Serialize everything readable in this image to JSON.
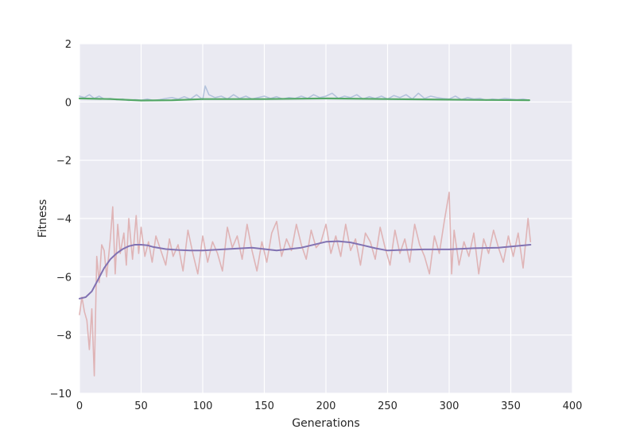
{
  "chart_data": {
    "type": "line",
    "title": "",
    "xlabel": "Generations",
    "ylabel": "Fitness",
    "xlim": [
      0,
      400
    ],
    "ylim": [
      -10,
      2
    ],
    "xticks": [
      0,
      50,
      100,
      150,
      200,
      250,
      300,
      350,
      400
    ],
    "yticks": [
      -10,
      -8,
      -6,
      -4,
      -2,
      0,
      2
    ],
    "ytick_labels": [
      "−10",
      "−8",
      "−6",
      "−4",
      "−2",
      "0",
      "2"
    ],
    "grid": true,
    "background": "#eaeaf2",
    "colors": {
      "raw_top": "#b4c3dc",
      "smooth_top": "#55a868",
      "raw_bottom": "#dfb4b6",
      "smooth_bottom": "#8172b2"
    },
    "series": [
      {
        "role": "raw_top",
        "x": [
          0,
          4,
          8,
          12,
          16,
          20,
          25,
          30,
          35,
          40,
          45,
          50,
          55,
          60,
          65,
          70,
          75,
          80,
          85,
          90,
          95,
          100,
          102,
          105,
          110,
          115,
          120,
          125,
          130,
          135,
          140,
          145,
          150,
          155,
          160,
          165,
          170,
          175,
          180,
          185,
          190,
          195,
          200,
          205,
          210,
          215,
          220,
          225,
          230,
          235,
          240,
          245,
          250,
          255,
          260,
          265,
          270,
          275,
          280,
          285,
          290,
          295,
          300,
          305,
          310,
          315,
          320,
          325,
          330,
          335,
          340,
          345,
          350,
          355,
          360,
          365
        ],
        "y": [
          0.2,
          0.15,
          0.25,
          0.12,
          0.2,
          0.1,
          0.12,
          0.08,
          0.1,
          0.05,
          0.08,
          0.06,
          0.1,
          0.05,
          0.08,
          0.12,
          0.15,
          0.1,
          0.18,
          0.1,
          0.25,
          0.08,
          0.55,
          0.25,
          0.15,
          0.2,
          0.1,
          0.25,
          0.12,
          0.2,
          0.1,
          0.15,
          0.2,
          0.12,
          0.18,
          0.1,
          0.15,
          0.12,
          0.2,
          0.12,
          0.25,
          0.15,
          0.2,
          0.3,
          0.12,
          0.2,
          0.15,
          0.25,
          0.1,
          0.18,
          0.12,
          0.2,
          0.1,
          0.22,
          0.15,
          0.25,
          0.1,
          0.3,
          0.12,
          0.2,
          0.15,
          0.12,
          0.1,
          0.2,
          0.08,
          0.15,
          0.1,
          0.12,
          0.06,
          0.1,
          0.08,
          0.12,
          0.1,
          0.08,
          0.1,
          0.06
        ]
      },
      {
        "role": "smooth_top",
        "x": [
          0,
          25,
          50,
          75,
          100,
          150,
          200,
          250,
          300,
          330,
          365
        ],
        "y": [
          0.12,
          0.1,
          0.05,
          0.06,
          0.1,
          0.1,
          0.12,
          0.1,
          0.08,
          0.07,
          0.06
        ]
      },
      {
        "role": "raw_bottom",
        "x": [
          0,
          2,
          4,
          6,
          8,
          10,
          12,
          14,
          16,
          18,
          20,
          22,
          25,
          27,
          29,
          31,
          33,
          36,
          38,
          40,
          43,
          46,
          48,
          50,
          53,
          56,
          59,
          62,
          66,
          70,
          73,
          76,
          80,
          84,
          88,
          92,
          96,
          100,
          104,
          108,
          112,
          116,
          120,
          124,
          128,
          132,
          136,
          140,
          144,
          148,
          152,
          156,
          160,
          164,
          168,
          172,
          176,
          180,
          184,
          188,
          192,
          196,
          200,
          204,
          208,
          212,
          216,
          220,
          224,
          228,
          232,
          236,
          240,
          244,
          248,
          252,
          256,
          260,
          264,
          268,
          272,
          276,
          280,
          284,
          288,
          292,
          296,
          300,
          302,
          304,
          308,
          312,
          316,
          320,
          324,
          328,
          332,
          336,
          340,
          344,
          348,
          352,
          356,
          360,
          364,
          366
        ],
        "y": [
          -7.3,
          -6.7,
          -7.2,
          -7.5,
          -8.5,
          -7.1,
          -9.4,
          -5.3,
          -6.2,
          -4.9,
          -5.1,
          -6.0,
          -4.7,
          -3.6,
          -5.9,
          -4.2,
          -5.2,
          -4.5,
          -5.6,
          -4.0,
          -5.4,
          -3.9,
          -5.2,
          -4.3,
          -5.3,
          -4.8,
          -5.5,
          -4.6,
          -5.1,
          -5.6,
          -4.7,
          -5.3,
          -4.9,
          -5.8,
          -4.4,
          -5.2,
          -5.9,
          -4.6,
          -5.5,
          -4.8,
          -5.2,
          -5.8,
          -4.3,
          -5.0,
          -4.6,
          -5.4,
          -4.2,
          -5.1,
          -5.8,
          -4.8,
          -5.5,
          -4.5,
          -4.1,
          -5.3,
          -4.7,
          -5.1,
          -4.2,
          -4.9,
          -5.4,
          -4.4,
          -5.0,
          -4.8,
          -4.2,
          -5.2,
          -4.6,
          -5.3,
          -4.2,
          -5.1,
          -4.7,
          -5.6,
          -4.5,
          -4.8,
          -5.4,
          -4.3,
          -5.0,
          -5.6,
          -4.4,
          -5.2,
          -4.7,
          -5.5,
          -4.2,
          -4.9,
          -5.3,
          -5.9,
          -4.6,
          -5.2,
          -4.1,
          -3.1,
          -5.9,
          -4.4,
          -5.6,
          -4.8,
          -5.3,
          -4.5,
          -5.9,
          -4.7,
          -5.2,
          -4.4,
          -5.0,
          -5.5,
          -4.6,
          -5.3,
          -4.5,
          -5.7,
          -4.0,
          -4.8
        ]
      },
      {
        "role": "smooth_bottom",
        "x": [
          0,
          5,
          10,
          15,
          20,
          25,
          30,
          35,
          40,
          45,
          50,
          55,
          60,
          70,
          80,
          90,
          100,
          120,
          140,
          160,
          180,
          200,
          210,
          220,
          230,
          240,
          250,
          260,
          280,
          300,
          320,
          340,
          366
        ],
        "y": [
          -6.75,
          -6.7,
          -6.5,
          -6.1,
          -5.7,
          -5.4,
          -5.2,
          -5.05,
          -4.95,
          -4.9,
          -4.9,
          -4.92,
          -4.98,
          -5.05,
          -5.08,
          -5.1,
          -5.1,
          -5.05,
          -5.0,
          -5.1,
          -5.0,
          -4.8,
          -4.78,
          -4.82,
          -4.92,
          -5.02,
          -5.1,
          -5.08,
          -5.06,
          -5.06,
          -5.02,
          -5.0,
          -4.9
        ]
      }
    ]
  }
}
